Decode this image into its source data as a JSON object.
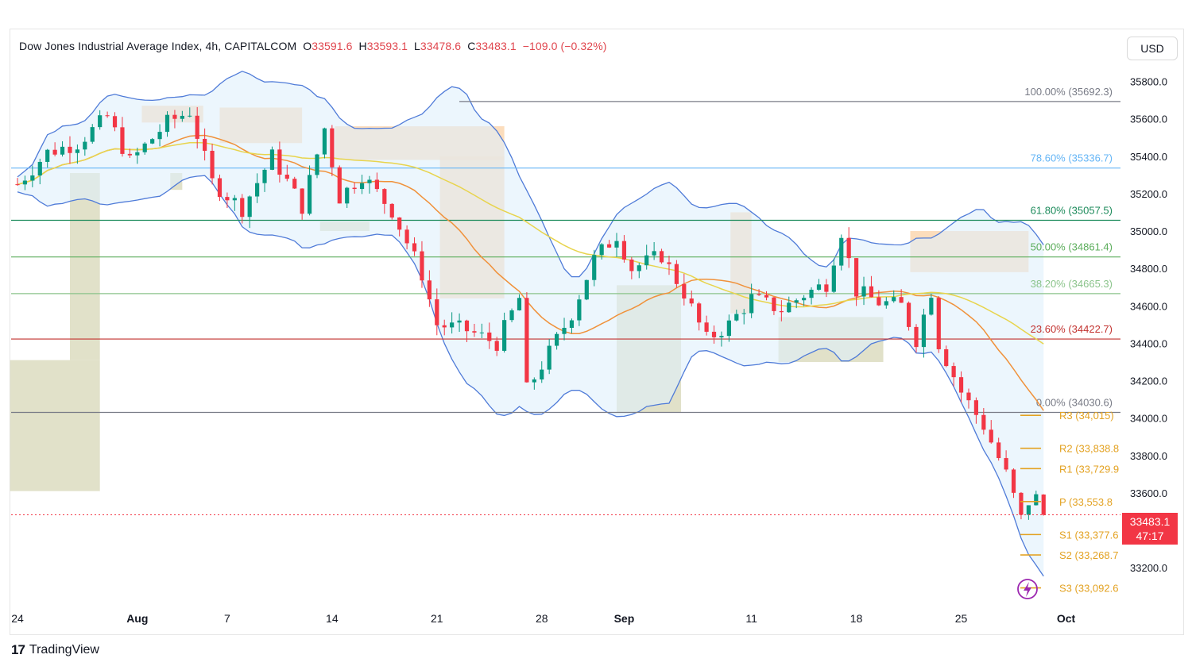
{
  "header": {
    "symbol": "Dow Jones Industrial Average Index, 4h, CAPITALCOM",
    "o_label": "O",
    "o_value": "33591.6",
    "h_label": "H",
    "h_value": "33593.1",
    "l_label": "L",
    "l_value": "33478.6",
    "c_label": "C",
    "c_value": "33483.1",
    "change": "−109.0 (−0.32%)"
  },
  "currency_button": "USD",
  "branding": {
    "logo": "17",
    "name": "TradingView"
  },
  "last_price": {
    "value": "33483.1",
    "countdown": "47:17"
  },
  "colors": {
    "up": "#089981",
    "down": "#f23645",
    "bb": "#4f7bd8",
    "ma_orange": "#f0913a",
    "ma_yellow": "#e8d44d",
    "supply": "#fbd7b0",
    "demand": "#dcdcc0",
    "pivot": "#e3a222"
  },
  "chart_data": {
    "type": "candlestick",
    "y_axis": {
      "ylim": [
        33010,
        35870
      ],
      "ticks": [
        33200,
        33400,
        33600,
        33800,
        34000,
        34200,
        34400,
        34600,
        34800,
        35000,
        35200,
        35400,
        35600,
        35800
      ],
      "tick_labels": [
        "33200.0",
        "33400.0",
        "33600.0",
        "33800.0",
        "34000.0",
        "34200.0",
        "34400.0",
        "34600.0",
        "34800.0",
        "35000.0",
        "35200.0",
        "35400.0",
        "35600.0",
        "35800.0"
      ]
    },
    "x_axis": {
      "labels": [
        {
          "label": "24",
          "day": 0,
          "bold": false
        },
        {
          "label": "Aug",
          "day": 8,
          "bold": true
        },
        {
          "label": "7",
          "day": 14,
          "bold": false
        },
        {
          "label": "14",
          "day": 21,
          "bold": false
        },
        {
          "label": "21",
          "day": 28,
          "bold": false
        },
        {
          "label": "28",
          "day": 35,
          "bold": false
        },
        {
          "label": "Sep",
          "day": 40.5,
          "bold": true
        },
        {
          "label": "11",
          "day": 49,
          "bold": false
        },
        {
          "label": "18",
          "day": 56,
          "bold": false
        },
        {
          "label": "25",
          "day": 63,
          "bold": false
        },
        {
          "label": "Oct",
          "day": 70,
          "bold": true
        }
      ]
    },
    "fibonacci": [
      {
        "label": "100.00% (35692.3)",
        "price": 35692.3,
        "color": "#787b86"
      },
      {
        "label": "78.60% (35336.7)",
        "price": 35336.7,
        "color": "#64b5f6"
      },
      {
        "label": "61.80% (35057.5)",
        "price": 35057.5,
        "color": "#1b8a5a"
      },
      {
        "label": "50.00% (34861.4)",
        "price": 34861.4,
        "color": "#5bad5b"
      },
      {
        "label": "38.20% (34665.3)",
        "price": 34665.3,
        "color": "#8bc48b"
      },
      {
        "label": "23.60% (34422.7)",
        "price": 34422.7,
        "color": "#c2322f"
      },
      {
        "label": "0.00% (34030.6)",
        "price": 34030.6,
        "color": "#787b86"
      }
    ],
    "pivots": [
      {
        "label": "R3 (34,015)",
        "price": 34015
      },
      {
        "label": "R2 (33,838.8",
        "price": 33838.8
      },
      {
        "label": "R1 (33,729.9",
        "price": 33729.9
      },
      {
        "label": "P (33,553.8",
        "price": 33553.8
      },
      {
        "label": "S1 (33,377.6",
        "price": 33377.6
      },
      {
        "label": "S2 (33,268.7",
        "price": 33268.7
      },
      {
        "label": "S3 (33,092.6",
        "price": 33092.6
      }
    ],
    "current_price": 33483.1,
    "anchor_points": [
      {
        "day": 0,
        "price": 35250
      },
      {
        "day": 2,
        "price": 35420
      },
      {
        "day": 4,
        "price": 35470
      },
      {
        "day": 6,
        "price": 35610
      },
      {
        "day": 7.5,
        "price": 35370
      },
      {
        "day": 10,
        "price": 35580
      },
      {
        "day": 11.5,
        "price": 35640
      },
      {
        "day": 13,
        "price": 35260
      },
      {
        "day": 15,
        "price": 35120
      },
      {
        "day": 17,
        "price": 35400
      },
      {
        "day": 19,
        "price": 35130
      },
      {
        "day": 20.5,
        "price": 35550
      },
      {
        "day": 21.5,
        "price": 35180
      },
      {
        "day": 23,
        "price": 35300
      },
      {
        "day": 25,
        "price": 35110
      },
      {
        "day": 27,
        "price": 34770
      },
      {
        "day": 28,
        "price": 34500
      },
      {
        "day": 30,
        "price": 34470
      },
      {
        "day": 32,
        "price": 34400
      },
      {
        "day": 33.5,
        "price": 34640
      },
      {
        "day": 34,
        "price": 34150
      },
      {
        "day": 35.5,
        "price": 34350
      },
      {
        "day": 37,
        "price": 34560
      },
      {
        "day": 38.5,
        "price": 34850
      },
      {
        "day": 40,
        "price": 34980
      },
      {
        "day": 41,
        "price": 34800
      },
      {
        "day": 43,
        "price": 34870
      },
      {
        "day": 44.5,
        "price": 34670
      },
      {
        "day": 46,
        "price": 34420
      },
      {
        "day": 47.5,
        "price": 34500
      },
      {
        "day": 49,
        "price": 34640
      },
      {
        "day": 51,
        "price": 34580
      },
      {
        "day": 52.5,
        "price": 34660
      },
      {
        "day": 54,
        "price": 34720
      },
      {
        "day": 55,
        "price": 35000
      },
      {
        "day": 56,
        "price": 34680
      },
      {
        "day": 57.5,
        "price": 34620
      },
      {
        "day": 59,
        "price": 34600
      },
      {
        "day": 60,
        "price": 34420
      },
      {
        "day": 61,
        "price": 34680
      },
      {
        "day": 61.5,
        "price": 34400
      },
      {
        "day": 63,
        "price": 34140
      },
      {
        "day": 64.5,
        "price": 33960
      },
      {
        "day": 66,
        "price": 33700
      },
      {
        "day": 67,
        "price": 33460
      },
      {
        "day": 67.8,
        "price": 33610
      },
      {
        "day": 68.5,
        "price": 33480
      }
    ]
  }
}
